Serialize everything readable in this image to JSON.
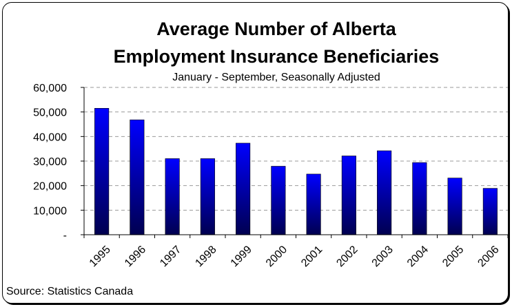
{
  "chart_data": {
    "type": "bar",
    "title_line1": "Average Number of Alberta",
    "title_line2": "Employment Insurance Beneficiaries",
    "subtitle": "January - September, Seasonally Adjusted",
    "source": "Source:  Statistics Canada",
    "categories": [
      "1995",
      "1996",
      "1997",
      "1998",
      "1999",
      "2000",
      "2001",
      "2002",
      "2003",
      "2004",
      "2005",
      "2006"
    ],
    "values": [
      51500,
      46800,
      31000,
      31000,
      37300,
      27900,
      24700,
      32100,
      34200,
      29400,
      23100,
      18900
    ],
    "ylim": [
      0,
      60000
    ],
    "yticks": [
      {
        "value": 0,
        "label": "-"
      },
      {
        "value": 10000,
        "label": "10,000"
      },
      {
        "value": 20000,
        "label": "20,000"
      },
      {
        "value": 30000,
        "label": "30,000"
      },
      {
        "value": 40000,
        "label": "40,000"
      },
      {
        "value": 50000,
        "label": "50,000"
      },
      {
        "value": 60000,
        "label": "60,000"
      }
    ],
    "xlabel": "",
    "ylabel": "",
    "grid": true,
    "bar_color_top": "#0000ff",
    "bar_color_bottom": "#000050",
    "grid_color": "#9a9a9a"
  }
}
